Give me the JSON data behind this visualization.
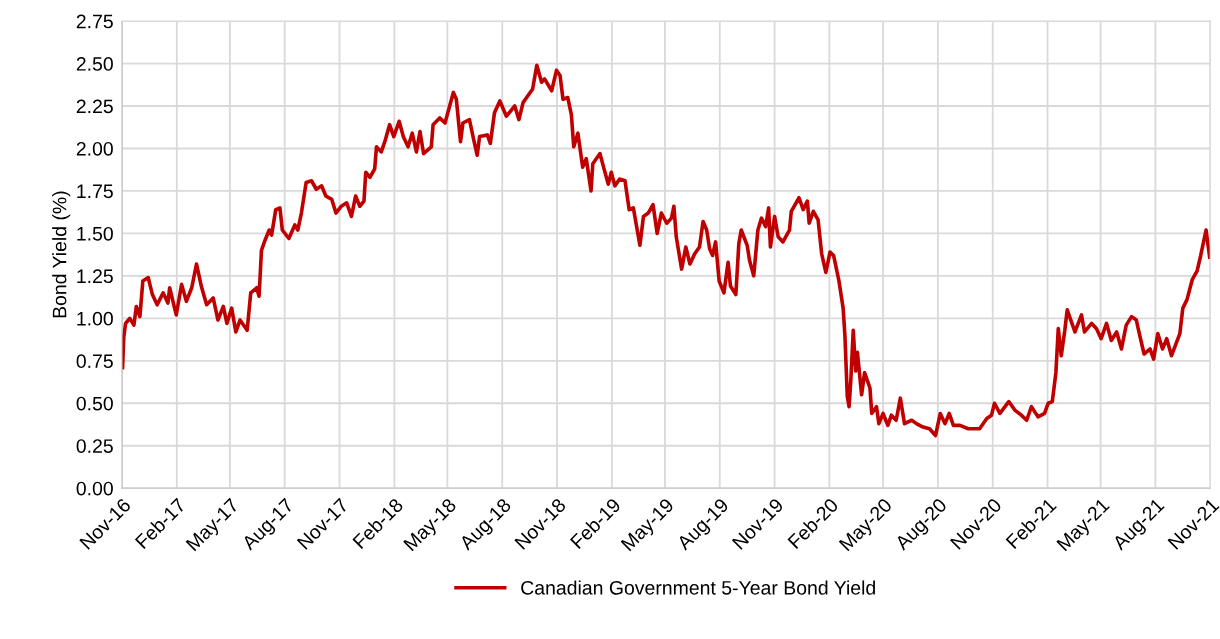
{
  "chart_data": {
    "type": "line",
    "ylabel": "Bond Yield (%)",
    "x": [
      "2016-11-02",
      "2016-11-04",
      "2016-11-07",
      "2016-11-14",
      "2016-11-21",
      "2016-11-25",
      "2016-12-01",
      "2016-12-06",
      "2016-12-15",
      "2016-12-22",
      "2016-12-30",
      "2017-01-09",
      "2017-01-17",
      "2017-01-20",
      "2017-01-31",
      "2017-02-09",
      "2017-02-17",
      "2017-02-26",
      "2017-03-06",
      "2017-03-14",
      "2017-03-23",
      "2017-04-03",
      "2017-04-11",
      "2017-04-20",
      "2017-04-26",
      "2017-05-04",
      "2017-05-11",
      "2017-05-18",
      "2017-05-30",
      "2017-06-05",
      "2017-06-15",
      "2017-06-19",
      "2017-06-23",
      "2017-06-29",
      "2017-07-06",
      "2017-07-10",
      "2017-07-17",
      "2017-07-24",
      "2017-07-28",
      "2017-08-08",
      "2017-08-18",
      "2017-08-23",
      "2017-08-29",
      "2017-09-06",
      "2017-09-15",
      "2017-09-23",
      "2017-10-02",
      "2017-10-09",
      "2017-10-19",
      "2017-10-26",
      "2017-11-04",
      "2017-11-13",
      "2017-11-21",
      "2017-11-28",
      "2017-12-05",
      "2017-12-12",
      "2017-12-15",
      "2017-12-22",
      "2017-12-30",
      "2018-01-02",
      "2018-01-10",
      "2018-01-16",
      "2018-01-24",
      "2018-01-31",
      "2018-02-09",
      "2018-02-16",
      "2018-02-24",
      "2018-03-03",
      "2018-03-10",
      "2018-03-16",
      "2018-03-22",
      "2018-04-04",
      "2018-04-07",
      "2018-04-18",
      "2018-04-27",
      "2018-05-04",
      "2018-05-11",
      "2018-05-16",
      "2018-05-23",
      "2018-05-27",
      "2018-06-07",
      "2018-06-13",
      "2018-06-20",
      "2018-06-24",
      "2018-07-07",
      "2018-07-12",
      "2018-07-19",
      "2018-07-28",
      "2018-08-08",
      "2018-08-22",
      "2018-08-29",
      "2018-09-05",
      "2018-09-13",
      "2018-09-21",
      "2018-09-28",
      "2018-10-06",
      "2018-10-11",
      "2018-10-23",
      "2018-10-31",
      "2018-11-06",
      "2018-11-11",
      "2018-11-19",
      "2018-11-25",
      "2018-11-29",
      "2018-12-06",
      "2018-12-14",
      "2018-12-20",
      "2018-12-28",
      "2018-12-31",
      "2019-01-12",
      "2019-01-18",
      "2019-01-26",
      "2019-01-31",
      "2019-02-06",
      "2019-02-14",
      "2019-02-23",
      "2019-03-02",
      "2019-03-09",
      "2019-03-20",
      "2019-03-26",
      "2019-04-03",
      "2019-04-11",
      "2019-04-18",
      "2019-04-25",
      "2019-05-04",
      "2019-05-12",
      "2019-05-16",
      "2019-05-20",
      "2019-05-29",
      "2019-06-05",
      "2019-06-12",
      "2019-06-20",
      "2019-06-28",
      "2019-07-04",
      "2019-07-10",
      "2019-07-15",
      "2019-07-20",
      "2019-07-25",
      "2019-07-31",
      "2019-08-08",
      "2019-08-15",
      "2019-08-19",
      "2019-08-28",
      "2019-09-02",
      "2019-09-06",
      "2019-09-16",
      "2019-09-20",
      "2019-09-27",
      "2019-10-04",
      "2019-10-10",
      "2019-10-17",
      "2019-10-22",
      "2019-10-25",
      "2019-11-01",
      "2019-11-07",
      "2019-11-15",
      "2019-11-26",
      "2019-11-29",
      "2019-12-12",
      "2019-12-19",
      "2019-12-26",
      "2019-12-29",
      "2020-01-05",
      "2020-01-13",
      "2020-01-19",
      "2020-01-26",
      "2020-02-02",
      "2020-02-08",
      "2020-02-17",
      "2020-02-24",
      "2020-02-27",
      "2020-03-02",
      "2020-03-05",
      "2020-03-08",
      "2020-03-12",
      "2020-03-16",
      "2020-03-19",
      "2020-03-26",
      "2020-03-31",
      "2020-04-09",
      "2020-04-12",
      "2020-04-20",
      "2020-04-24",
      "2020-05-01",
      "2020-05-09",
      "2020-05-15",
      "2020-05-23",
      "2020-05-30",
      "2020-06-06",
      "2020-06-18",
      "2020-06-26",
      "2020-07-07",
      "2020-07-18",
      "2020-07-28",
      "2020-08-05",
      "2020-08-13",
      "2020-08-20",
      "2020-08-27",
      "2020-09-07",
      "2020-09-21",
      "2020-10-10",
      "2020-10-22",
      "2020-10-30",
      "2020-11-04",
      "2020-11-13",
      "2020-11-28",
      "2020-12-08",
      "2020-12-19",
      "2020-12-28",
      "2021-01-05",
      "2021-01-16",
      "2021-01-27",
      "2021-02-02",
      "2021-02-09",
      "2021-02-15",
      "2021-02-19",
      "2021-02-24",
      "2021-03-02",
      "2021-03-06",
      "2021-03-19",
      "2021-03-30",
      "2021-04-04",
      "2021-04-16",
      "2021-04-24",
      "2021-05-02",
      "2021-05-11",
      "2021-05-19",
      "2021-05-28",
      "2021-06-05",
      "2021-06-13",
      "2021-06-22",
      "2021-06-30",
      "2021-07-05",
      "2021-07-13",
      "2021-07-23",
      "2021-07-29",
      "2021-08-05",
      "2021-08-13",
      "2021-08-20",
      "2021-08-28",
      "2021-09-11",
      "2021-09-16",
      "2021-09-23",
      "2021-10-02",
      "2021-10-10",
      "2021-10-16",
      "2021-10-25",
      "2021-10-31"
    ],
    "series": [
      {
        "name": "Canadian Government 5-Year Bond Yield",
        "color": "#c00000",
        "values": [
          0.71,
          0.89,
          0.97,
          1.0,
          0.96,
          1.07,
          1.01,
          1.22,
          1.24,
          1.14,
          1.08,
          1.15,
          1.09,
          1.18,
          1.02,
          1.2,
          1.1,
          1.18,
          1.32,
          1.19,
          1.08,
          1.12,
          0.99,
          1.07,
          0.97,
          1.06,
          0.92,
          0.99,
          0.93,
          1.15,
          1.18,
          1.13,
          1.4,
          1.46,
          1.52,
          1.49,
          1.64,
          1.65,
          1.52,
          1.47,
          1.55,
          1.52,
          1.62,
          1.8,
          1.81,
          1.76,
          1.78,
          1.72,
          1.7,
          1.62,
          1.66,
          1.68,
          1.6,
          1.72,
          1.66,
          1.69,
          1.86,
          1.83,
          1.88,
          2.01,
          1.98,
          2.04,
          2.14,
          2.07,
          2.16,
          2.07,
          2.01,
          2.09,
          1.98,
          2.1,
          1.97,
          2.01,
          2.14,
          2.18,
          2.15,
          2.24,
          2.33,
          2.29,
          2.04,
          2.15,
          2.17,
          2.07,
          1.96,
          2.07,
          2.08,
          2.03,
          2.21,
          2.28,
          2.19,
          2.25,
          2.17,
          2.27,
          2.31,
          2.35,
          2.49,
          2.39,
          2.41,
          2.34,
          2.46,
          2.43,
          2.29,
          2.3,
          2.2,
          2.01,
          2.09,
          1.89,
          1.94,
          1.75,
          1.91,
          1.97,
          1.89,
          1.79,
          1.86,
          1.78,
          1.82,
          1.81,
          1.64,
          1.65,
          1.43,
          1.6,
          1.62,
          1.67,
          1.5,
          1.62,
          1.56,
          1.59,
          1.66,
          1.48,
          1.29,
          1.42,
          1.32,
          1.38,
          1.42,
          1.57,
          1.52,
          1.41,
          1.37,
          1.45,
          1.22,
          1.15,
          1.33,
          1.19,
          1.14,
          1.44,
          1.52,
          1.43,
          1.34,
          1.25,
          1.52,
          1.59,
          1.54,
          1.65,
          1.42,
          1.6,
          1.48,
          1.45,
          1.52,
          1.63,
          1.71,
          1.64,
          1.69,
          1.56,
          1.63,
          1.58,
          1.38,
          1.27,
          1.39,
          1.37,
          1.22,
          1.06,
          0.9,
          0.54,
          0.48,
          0.64,
          0.93,
          0.69,
          0.8,
          0.55,
          0.68,
          0.59,
          0.44,
          0.48,
          0.38,
          0.44,
          0.37,
          0.43,
          0.4,
          0.53,
          0.38,
          0.4,
          0.38,
          0.36,
          0.35,
          0.31,
          0.44,
          0.38,
          0.44,
          0.37,
          0.37,
          0.35,
          0.35,
          0.41,
          0.43,
          0.5,
          0.44,
          0.51,
          0.46,
          0.43,
          0.4,
          0.48,
          0.42,
          0.44,
          0.5,
          0.51,
          0.68,
          0.94,
          0.78,
          0.93,
          1.05,
          0.92,
          1.02,
          0.92,
          0.97,
          0.94,
          0.88,
          0.97,
          0.87,
          0.92,
          0.82,
          0.96,
          1.01,
          0.99,
          0.91,
          0.79,
          0.82,
          0.76,
          0.91,
          0.82,
          0.88,
          0.78,
          0.91,
          1.06,
          1.11,
          1.23,
          1.28,
          1.37,
          1.52,
          1.36
        ]
      }
    ],
    "xlim": [
      "2016-11-01",
      "2021-11-01"
    ],
    "xticks": [
      {
        "value": "2016-11-01",
        "label": "Nov-16"
      },
      {
        "value": "2017-02-01",
        "label": "Feb-17"
      },
      {
        "value": "2017-05-01",
        "label": "May-17"
      },
      {
        "value": "2017-08-01",
        "label": "Aug-17"
      },
      {
        "value": "2017-11-01",
        "label": "Nov-17"
      },
      {
        "value": "2018-02-01",
        "label": "Feb-18"
      },
      {
        "value": "2018-05-01",
        "label": "May-18"
      },
      {
        "value": "2018-08-01",
        "label": "Aug-18"
      },
      {
        "value": "2018-11-01",
        "label": "Nov-18"
      },
      {
        "value": "2019-02-01",
        "label": "Feb-19"
      },
      {
        "value": "2019-05-01",
        "label": "May-19"
      },
      {
        "value": "2019-08-01",
        "label": "Aug-19"
      },
      {
        "value": "2019-11-01",
        "label": "Nov-19"
      },
      {
        "value": "2020-02-01",
        "label": "Feb-20"
      },
      {
        "value": "2020-05-01",
        "label": "May-20"
      },
      {
        "value": "2020-08-01",
        "label": "Aug-20"
      },
      {
        "value": "2020-11-01",
        "label": "Nov-20"
      },
      {
        "value": "2021-02-01",
        "label": "Feb-21"
      },
      {
        "value": "2021-05-01",
        "label": "May-21"
      },
      {
        "value": "2021-08-01",
        "label": "Aug-21"
      },
      {
        "value": "2021-11-01",
        "label": "Nov-21"
      }
    ],
    "ylim": [
      0,
      2.75
    ],
    "yticks": [
      {
        "value": 0,
        "label": "0.00"
      },
      {
        "value": 0.25,
        "label": "0.25"
      },
      {
        "value": 0.5,
        "label": "0.50"
      },
      {
        "value": 0.75,
        "label": "0.75"
      },
      {
        "value": 1,
        "label": "1.00"
      },
      {
        "value": 1.25,
        "label": "1.25"
      },
      {
        "value": 1.5,
        "label": "1.50"
      },
      {
        "value": 1.75,
        "label": "1.75"
      },
      {
        "value": 2,
        "label": "2.00"
      },
      {
        "value": 2.25,
        "label": "2.25"
      },
      {
        "value": 2.5,
        "label": "2.50"
      },
      {
        "value": 2.75,
        "label": "2.75"
      }
    ],
    "grid": true,
    "legend": "bottom",
    "marker": "none",
    "line_style": "solid"
  }
}
